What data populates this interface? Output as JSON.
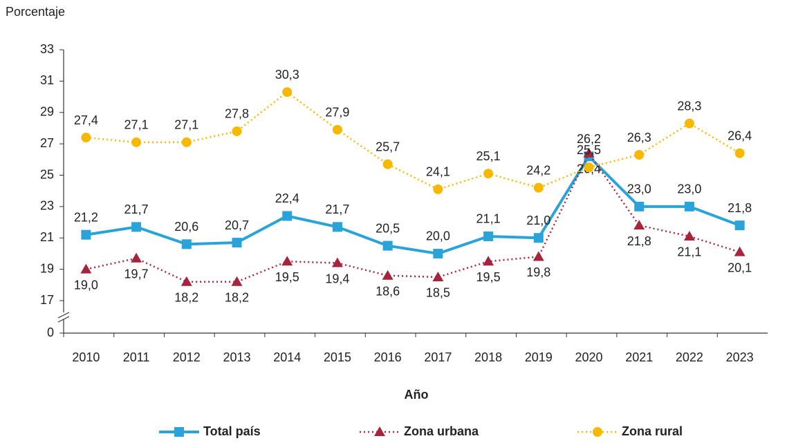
{
  "chart_data": {
    "type": "line",
    "y_label": "Porcentaje",
    "x_label": "Año",
    "categories": [
      "2010",
      "2011",
      "2012",
      "2013",
      "2014",
      "2015",
      "2016",
      "2017",
      "2018",
      "2019",
      "2020",
      "2021",
      "2022",
      "2023"
    ],
    "ylim": [
      0,
      33
    ],
    "yticks": [
      0,
      17,
      19,
      21,
      23,
      25,
      27,
      29,
      31,
      33
    ],
    "axis_break": [
      0,
      17
    ],
    "series": [
      {
        "name": "Total país",
        "color": "#2aa4d8",
        "marker": "square",
        "dash": "solid",
        "values": [
          21.2,
          21.7,
          20.6,
          20.7,
          22.4,
          21.7,
          20.5,
          20.0,
          21.1,
          21.0,
          26.2,
          23.0,
          23.0,
          21.8
        ],
        "value_labels": [
          "21,2",
          "21,7",
          "20,6",
          "20,7",
          "22,4",
          "21,7",
          "20,5",
          "20,0",
          "21,1",
          "21,0",
          "26,2",
          "23,0",
          "23,0",
          "21,8"
        ]
      },
      {
        "name": "Zona urbana",
        "color": "#a6243c",
        "marker": "triangle",
        "dash": "dotted",
        "values": [
          19.0,
          19.7,
          18.2,
          18.2,
          19.5,
          19.4,
          18.6,
          18.5,
          19.5,
          19.8,
          26.4,
          21.8,
          21.1,
          20.1
        ],
        "value_labels": [
          "19,0",
          "19,7",
          "18,2",
          "18,2",
          "19,5",
          "19,4",
          "18,6",
          "18,5",
          "19,5",
          "19,8",
          "26,4",
          "21,8",
          "21,1",
          "20,1"
        ]
      },
      {
        "name": "Zona rural",
        "color": "#f6b800",
        "marker": "circle",
        "dash": "dotted",
        "values": [
          27.4,
          27.1,
          27.1,
          27.8,
          30.3,
          27.9,
          25.7,
          24.1,
          25.1,
          24.2,
          25.5,
          26.3,
          28.3,
          26.4
        ],
        "value_labels": [
          "27,4",
          "27,1",
          "27,1",
          "27,8",
          "30,3",
          "27,9",
          "25,7",
          "24,1",
          "25,1",
          "24,2",
          "25,5",
          "26,3",
          "28,3",
          "26,4"
        ]
      }
    ]
  }
}
